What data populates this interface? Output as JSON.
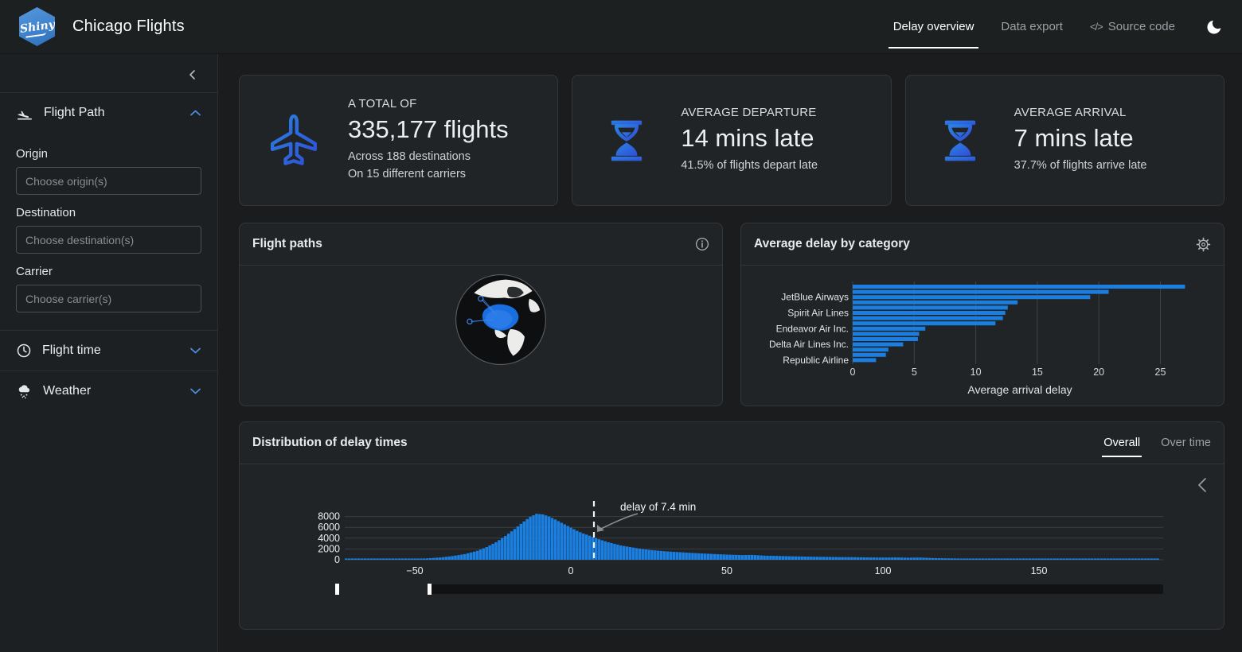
{
  "navbar": {
    "logo_text": "Shiny",
    "brand": "Chicago Flights",
    "tabs": [
      {
        "label": "Delay overview",
        "active": true
      },
      {
        "label": "Data export",
        "active": false
      },
      {
        "label": "Source code",
        "active": false,
        "icon": "code-icon"
      }
    ]
  },
  "sidebar": {
    "sections": [
      {
        "label": "Flight Path",
        "icon": "plane-arrival-icon",
        "expanded": true,
        "fields": [
          {
            "label": "Origin",
            "placeholder": "Choose origin(s)"
          },
          {
            "label": "Destination",
            "placeholder": "Choose destination(s)"
          },
          {
            "label": "Carrier",
            "placeholder": "Choose carrier(s)"
          }
        ]
      },
      {
        "label": "Flight time",
        "icon": "clock-icon",
        "expanded": false
      },
      {
        "label": "Weather",
        "icon": "cloud-rain-icon",
        "expanded": false
      }
    ]
  },
  "value_boxes": [
    {
      "icon": "plane-icon",
      "title": "A TOTAL OF",
      "value": "335,177 flights",
      "subtitle_lines": [
        "Across 188 destinations",
        "On 15 different carriers"
      ]
    },
    {
      "icon": "hourglass-icon",
      "title": "AVERAGE DEPARTURE",
      "value": "14 mins late",
      "subtitle_lines": [
        "41.5% of flights depart late"
      ]
    },
    {
      "icon": "hourglass-icon",
      "title": "AVERAGE ARRIVAL",
      "value": "7 mins late",
      "subtitle_lines": [
        "37.7% of flights arrive late"
      ]
    }
  ],
  "cards": {
    "flight_paths": {
      "title": "Flight paths"
    },
    "avg_delay": {
      "title": "Average delay by category"
    },
    "distribution": {
      "title": "Distribution of delay times",
      "tabs": [
        {
          "label": "Overall",
          "active": true
        },
        {
          "label": "Over time",
          "active": false
        }
      ]
    }
  },
  "chart_data": [
    {
      "id": "avg_delay_by_category",
      "type": "bar",
      "orientation": "horizontal",
      "title": "Average delay by category",
      "xlabel": "Average arrival delay",
      "xticks": [
        0,
        5,
        10,
        15,
        20,
        25
      ],
      "xlim": [
        0,
        28
      ],
      "values": [
        27,
        20.8,
        19.3,
        13.4,
        12.6,
        12.4,
        12.2,
        11.6,
        5.9,
        5.4,
        5.3,
        4.1,
        2.9,
        2.7,
        1.9
      ],
      "visible_labels": [
        {
          "index": 2,
          "text": "JetBlue Airways"
        },
        {
          "index": 5,
          "text": "Spirit Air Lines"
        },
        {
          "index": 8,
          "text": "Endeavor Air Inc."
        },
        {
          "index": 11,
          "text": "Delta Air Lines Inc."
        },
        {
          "index": 14,
          "text": "Republic Airline"
        }
      ],
      "bar_color": "#1a7fe0",
      "grid": true,
      "legend": false
    },
    {
      "id": "delay_distribution",
      "type": "area",
      "title": "Distribution of delay times (histogram of delay minutes vs flight count)",
      "xticks": [
        -50,
        0,
        50,
        100,
        150
      ],
      "yticks": [
        0,
        2000,
        4000,
        6000,
        8000
      ],
      "xlim": [
        -72,
        190
      ],
      "ylim": [
        0,
        8800
      ],
      "annotation": {
        "text": "delay of 7.4 min",
        "x": 7.4
      },
      "fill_color": "#1a7fe0",
      "grid": true,
      "envelope": [
        [
          -72,
          60
        ],
        [
          -66,
          80
        ],
        [
          -60,
          100
        ],
        [
          -55,
          140
        ],
        [
          -50,
          185
        ],
        [
          -46,
          260
        ],
        [
          -42,
          420
        ],
        [
          -38,
          680
        ],
        [
          -34,
          1050
        ],
        [
          -30,
          1650
        ],
        [
          -27,
          2350
        ],
        [
          -24,
          3250
        ],
        [
          -21,
          4400
        ],
        [
          -18,
          5700
        ],
        [
          -15,
          7100
        ],
        [
          -13,
          7950
        ],
        [
          -11,
          8500
        ],
        [
          -9,
          8400
        ],
        [
          -7,
          8000
        ],
        [
          -5,
          7450
        ],
        [
          -3,
          6850
        ],
        [
          -1,
          6250
        ],
        [
          0,
          5950
        ],
        [
          2,
          5350
        ],
        [
          4,
          4850
        ],
        [
          6,
          4450
        ],
        [
          8,
          4000
        ],
        [
          10,
          3600
        ],
        [
          12,
          3250
        ],
        [
          14,
          2950
        ],
        [
          16,
          2650
        ],
        [
          18,
          2450
        ],
        [
          20,
          2250
        ],
        [
          23,
          1980
        ],
        [
          26,
          1780
        ],
        [
          30,
          1580
        ],
        [
          34,
          1430
        ],
        [
          38,
          1300
        ],
        [
          42,
          1170
        ],
        [
          46,
          1060
        ],
        [
          50,
          960
        ],
        [
          55,
          860
        ],
        [
          58,
          900
        ],
        [
          62,
          760
        ],
        [
          66,
          710
        ],
        [
          70,
          650
        ],
        [
          75,
          590
        ],
        [
          80,
          540
        ],
        [
          85,
          505
        ],
        [
          90,
          475
        ],
        [
          95,
          435
        ],
        [
          100,
          405
        ],
        [
          104,
          430
        ],
        [
          108,
          380
        ],
        [
          112,
          410
        ],
        [
          116,
          310
        ],
        [
          120,
          265
        ],
        [
          125,
          235
        ],
        [
          130,
          215
        ],
        [
          135,
          195
        ],
        [
          140,
          178
        ],
        [
          145,
          162
        ],
        [
          150,
          150
        ],
        [
          155,
          136
        ],
        [
          160,
          122
        ],
        [
          165,
          110
        ],
        [
          170,
          100
        ],
        [
          175,
          90
        ],
        [
          180,
          82
        ],
        [
          185,
          72
        ],
        [
          188,
          62
        ]
      ]
    }
  ],
  "colors": {
    "accent_blue": "#1a7fe0",
    "icon_gradient_start": "#2b82e0",
    "icon_gradient_end": "#2f4fd8",
    "card_bg": "#212427",
    "page_bg": "#1a1c1e"
  }
}
